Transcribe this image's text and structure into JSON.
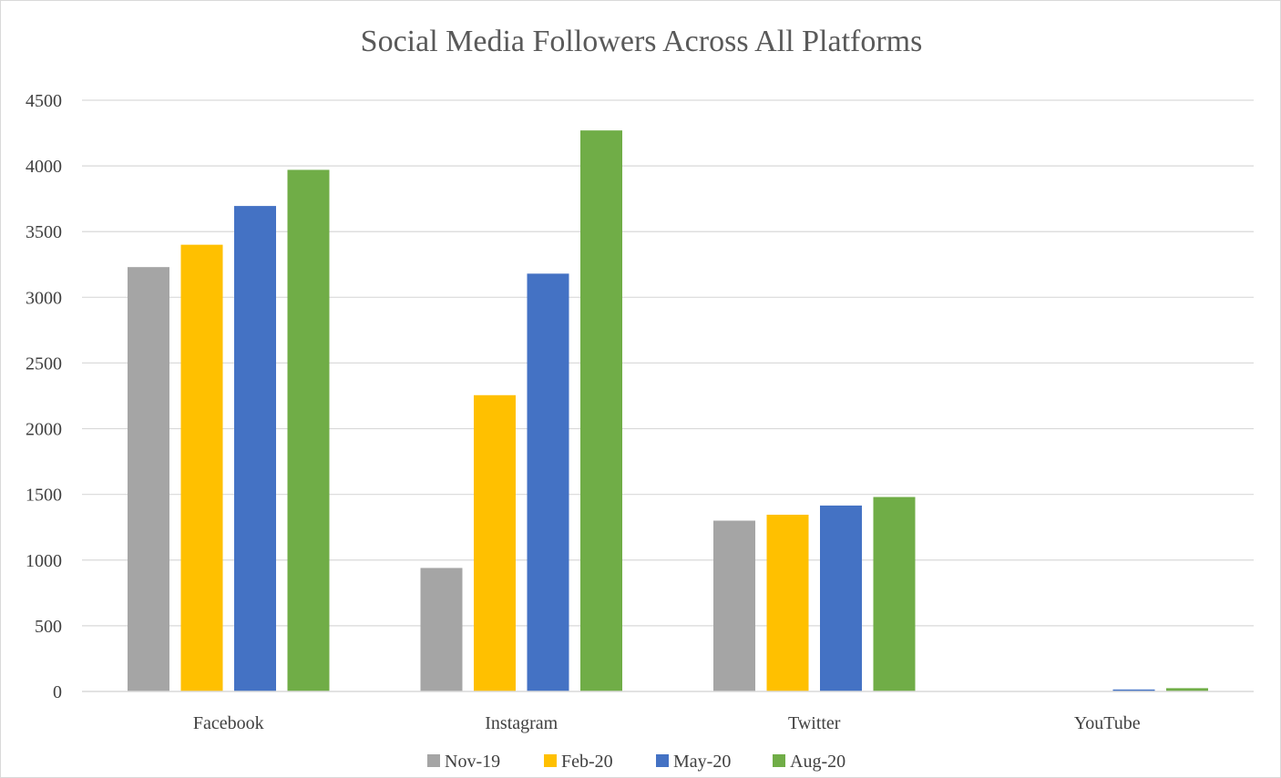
{
  "chart_data": {
    "type": "bar",
    "title": "Social Media Followers Across All Platforms",
    "xlabel": "",
    "ylabel": "",
    "categories": [
      "Facebook",
      "Instagram",
      "Twitter",
      "YouTube"
    ],
    "series": [
      {
        "name": "Nov-19",
        "color": "#a5a5a5",
        "values": [
          3230,
          940,
          1300,
          0
        ]
      },
      {
        "name": "Feb-20",
        "color": "#ffc000",
        "values": [
          3400,
          2255,
          1345,
          0
        ]
      },
      {
        "name": "May-20",
        "color": "#4472c4",
        "values": [
          3695,
          3180,
          1415,
          15
        ]
      },
      {
        "name": "Aug-20",
        "color": "#70ad47",
        "values": [
          3970,
          4270,
          1480,
          25
        ]
      }
    ],
    "ylim": [
      0,
      4500
    ],
    "yticks": [
      0,
      500,
      1000,
      1500,
      2000,
      2500,
      3000,
      3500,
      4000,
      4500
    ],
    "grid": true,
    "legend_position": "bottom"
  }
}
